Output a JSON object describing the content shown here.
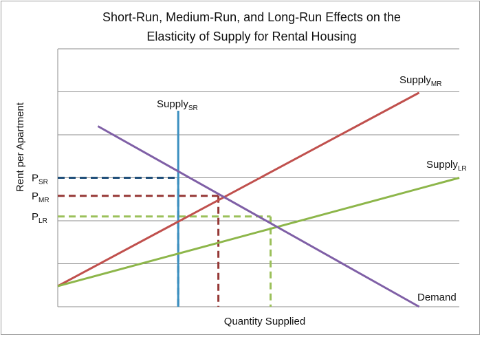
{
  "chart_data": {
    "type": "line",
    "title_line1": "Short-Run, Medium-Run, and Long-Run Effects on the",
    "title_line2": "Elasticity of Supply for Rental Housing",
    "xlabel": "Quantity Supplied",
    "ylabel": "Rent per Apartment",
    "grid": true,
    "xlim": [
      0,
      100
    ],
    "ylim": [
      0,
      100
    ],
    "series": [
      {
        "key": "supply_sr",
        "name_base": "Supply",
        "name_sub": "SR",
        "color": "#3a8fc0",
        "points": [
          [
            30,
            0
          ],
          [
            30,
            76
          ]
        ]
      },
      {
        "key": "supply_mr",
        "name_base": "Supply",
        "name_sub": "MR",
        "color": "#c0504d",
        "points": [
          [
            0,
            8
          ],
          [
            90,
            83
          ]
        ]
      },
      {
        "key": "supply_lr",
        "name_base": "Supply",
        "name_sub": "LR",
        "color": "#8db64a",
        "points": [
          [
            0,
            8
          ],
          [
            100,
            50
          ]
        ]
      },
      {
        "key": "demand",
        "name_base": "Demand",
        "name_sub": "",
        "color": "#7f5fa6",
        "points": [
          [
            10,
            70
          ],
          [
            90,
            0
          ]
        ]
      }
    ],
    "price_levels": [
      {
        "base": "P",
        "sub": "SR",
        "value": 50,
        "x": 30,
        "color": "#1f4e79"
      },
      {
        "base": "P",
        "sub": "MR",
        "value": 43,
        "x": 40,
        "color": "#953735"
      },
      {
        "base": "P",
        "sub": "LR",
        "value": 35,
        "x": 53,
        "color": "#9bc05a"
      }
    ]
  }
}
